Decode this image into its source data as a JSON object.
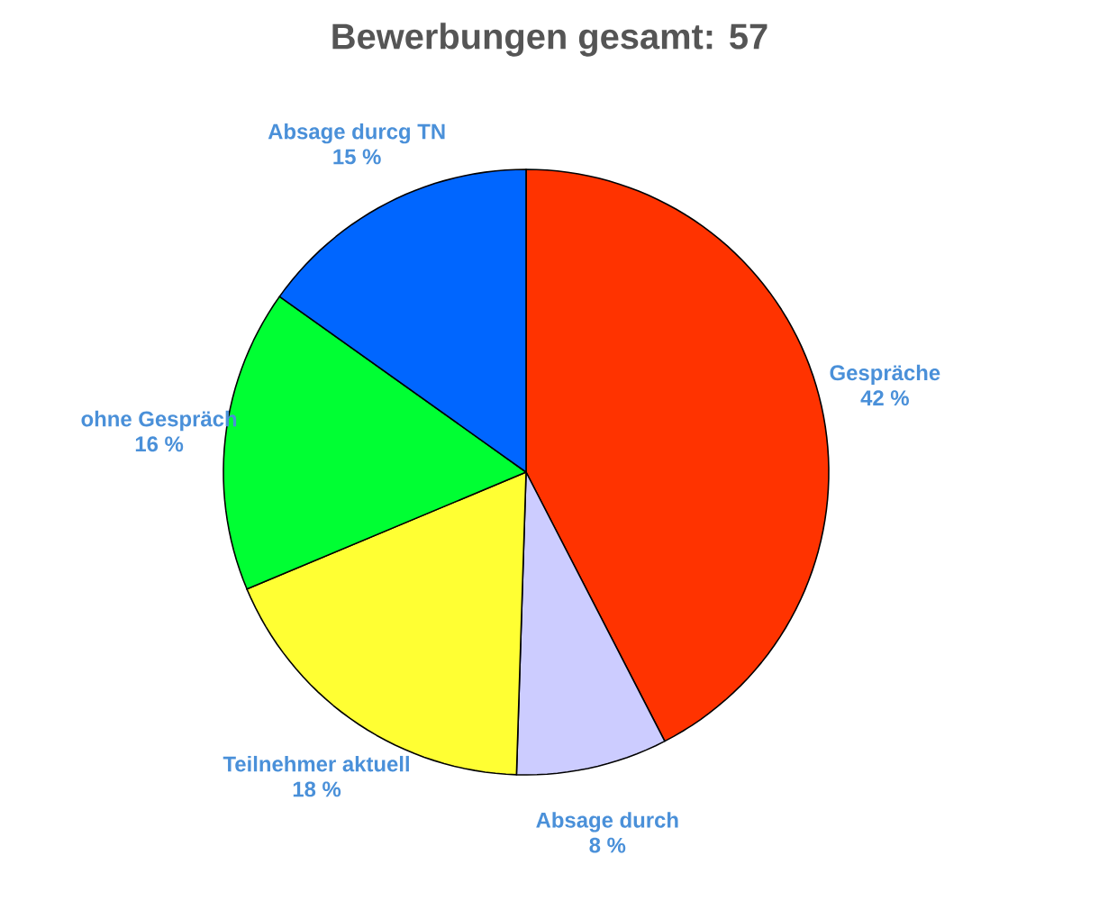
{
  "chart_data": {
    "type": "pie",
    "title": "Bewerbungen gesamt: 57",
    "categories": [
      "Gespräche",
      "Absage durch",
      "Teilnehmer aktuell",
      "ohne Gespräch",
      "Absage durcg TN"
    ],
    "values": [
      42,
      8,
      18,
      16,
      15
    ],
    "colors": [
      "#ff3300",
      "#ccccff",
      "#ffff33",
      "#00ff33",
      "#0066ff"
    ],
    "value_labels": [
      "42 %",
      "8 %",
      "18 %",
      "16 %",
      "15 %"
    ]
  }
}
